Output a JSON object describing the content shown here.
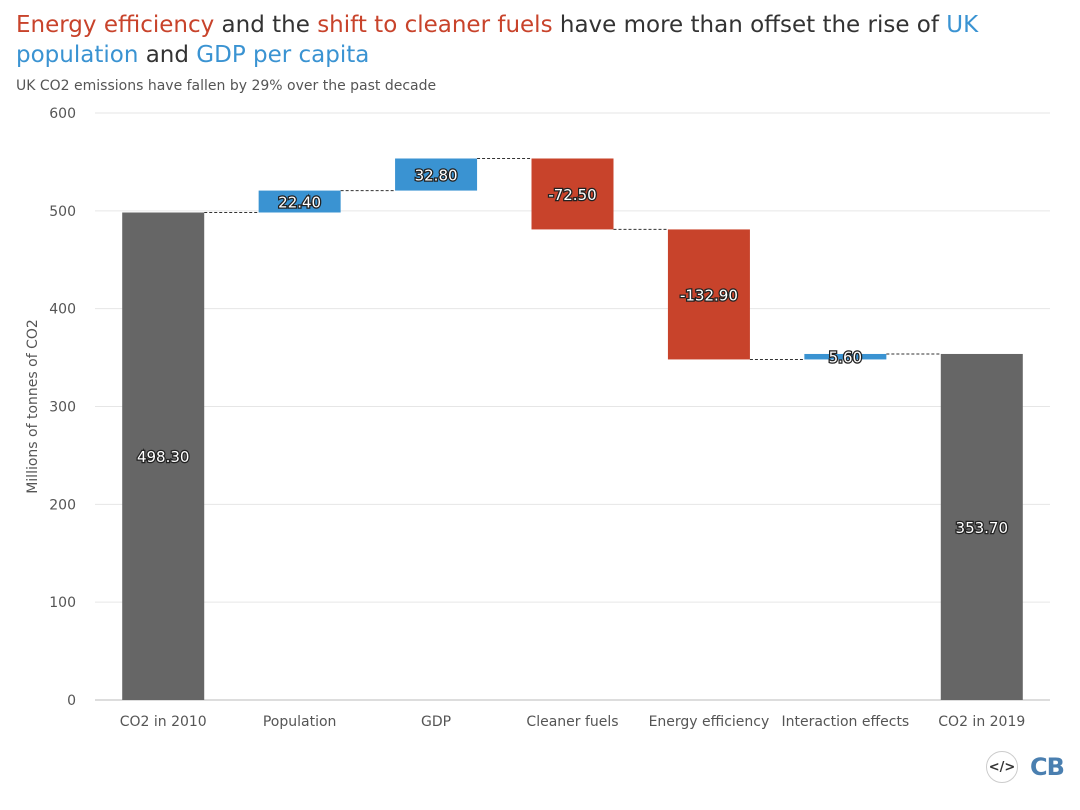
{
  "title": {
    "parts": [
      {
        "text": "Energy efficiency",
        "color": "#c8432b"
      },
      {
        "text": " and the ",
        "color": "#333333"
      },
      {
        "text": "shift to cleaner fuels",
        "color": "#c8432b"
      },
      {
        "text": " have more than offset the rise of ",
        "color": "#333333"
      },
      {
        "text": "UK population",
        "color": "#3a93d2"
      },
      {
        "text": " and ",
        "color": "#333333"
      },
      {
        "text": "GDP per capita",
        "color": "#3a93d2"
      }
    ]
  },
  "subtitle": "UK CO2 emissions have fallen by 29% over the past decade",
  "logo": {
    "embed_icon": "code-icon",
    "embed_text": "</>",
    "brand": "CB"
  },
  "chart_data": {
    "type": "waterfall",
    "ylabel": "Millions of tonnes of CO2",
    "xlabel": "",
    "ylim": [
      0,
      600
    ],
    "yticks": [
      0,
      100,
      200,
      300,
      400,
      500,
      600
    ],
    "grid": true,
    "categories": [
      "CO2 in 2010",
      "Population",
      "GDP",
      "Cleaner fuels",
      "Energy efficiency",
      "Interaction effects",
      "CO2 in 2019"
    ],
    "values": [
      498.3,
      22.4,
      32.8,
      -72.5,
      -132.9,
      5.6,
      353.7
    ],
    "labels": [
      "498.30",
      "22.40",
      "32.80",
      "-72.50",
      "-132.90",
      "5.60",
      "353.70"
    ],
    "kinds": [
      "total",
      "delta",
      "delta",
      "delta",
      "delta",
      "delta",
      "total"
    ],
    "colors": {
      "total": "#666666",
      "increase": "#3a93d2",
      "decrease": "#c8432b"
    }
  }
}
